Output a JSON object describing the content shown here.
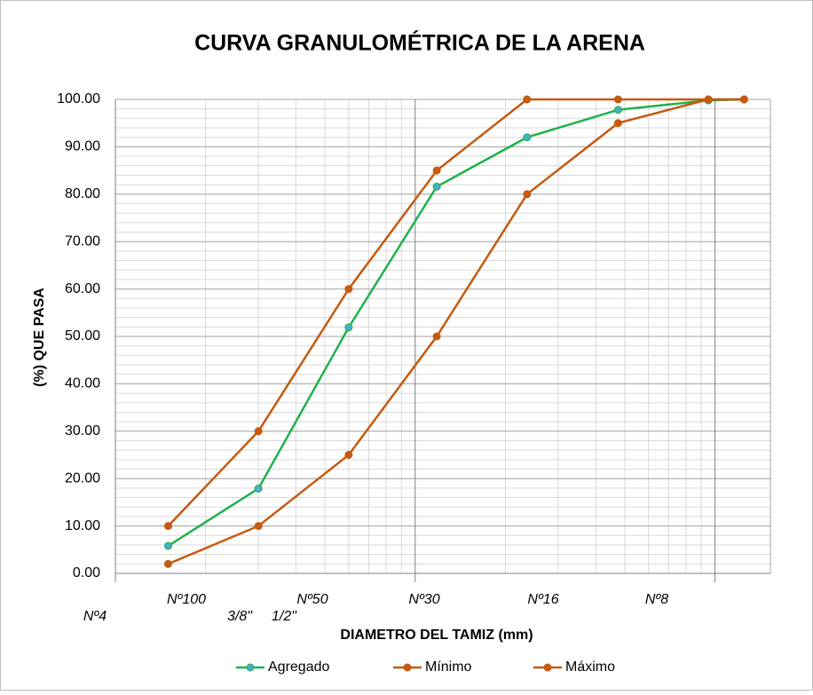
{
  "chart_data": {
    "type": "line",
    "title": "CURVA GRANULOMÉTRICA DE LA ARENA",
    "x_label": "DIAMETRO DEL TAMIZ  (mm)",
    "y_label": "(%) QUE PASA",
    "x_scale": "log",
    "xlim": [
      0.1,
      15.3
    ],
    "xticks": [
      0.1,
      1,
      10
    ],
    "ylim": [
      0,
      100
    ],
    "yticks": [
      {
        "value": 0,
        "label": "0.00"
      },
      {
        "value": 10,
        "label": "10.00"
      },
      {
        "value": 20,
        "label": "20.00"
      },
      {
        "value": 30,
        "label": "30.00"
      },
      {
        "value": 40,
        "label": "40.00"
      },
      {
        "value": 50,
        "label": "50.00"
      },
      {
        "value": 60,
        "label": "60.00"
      },
      {
        "value": 70,
        "label": "70.00"
      },
      {
        "value": 80,
        "label": "80.00"
      },
      {
        "value": 90,
        "label": "90.00"
      },
      {
        "value": 100,
        "label": "100.00"
      }
    ],
    "grid": true,
    "sieve_labels": [
      "Nº4",
      "Nº100",
      "3/8\"",
      "1/2\"",
      "Nº50",
      "Nº30",
      "Nº16",
      "Nº8"
    ],
    "x": [
      0.15,
      0.3,
      0.6,
      1.18,
      2.36,
      4.75,
      9.5,
      12.5
    ],
    "series": [
      {
        "name": "Agregado",
        "color": "#1db34b",
        "marker_color": "#4bacc6",
        "values": [
          5.8,
          17.9,
          51.9,
          81.6,
          92,
          97.8,
          99.8,
          100
        ]
      },
      {
        "name": "Mínimo",
        "color": "#c55a11",
        "marker_color": "#c55a11",
        "values": [
          2,
          10,
          25,
          50,
          80,
          95,
          100,
          100
        ]
      },
      {
        "name": "Máximo",
        "color": "#c55a11",
        "marker_color": "#c55a11",
        "values": [
          10,
          30,
          60,
          85,
          100,
          100,
          100,
          100
        ]
      }
    ],
    "legend": "bottom"
  }
}
